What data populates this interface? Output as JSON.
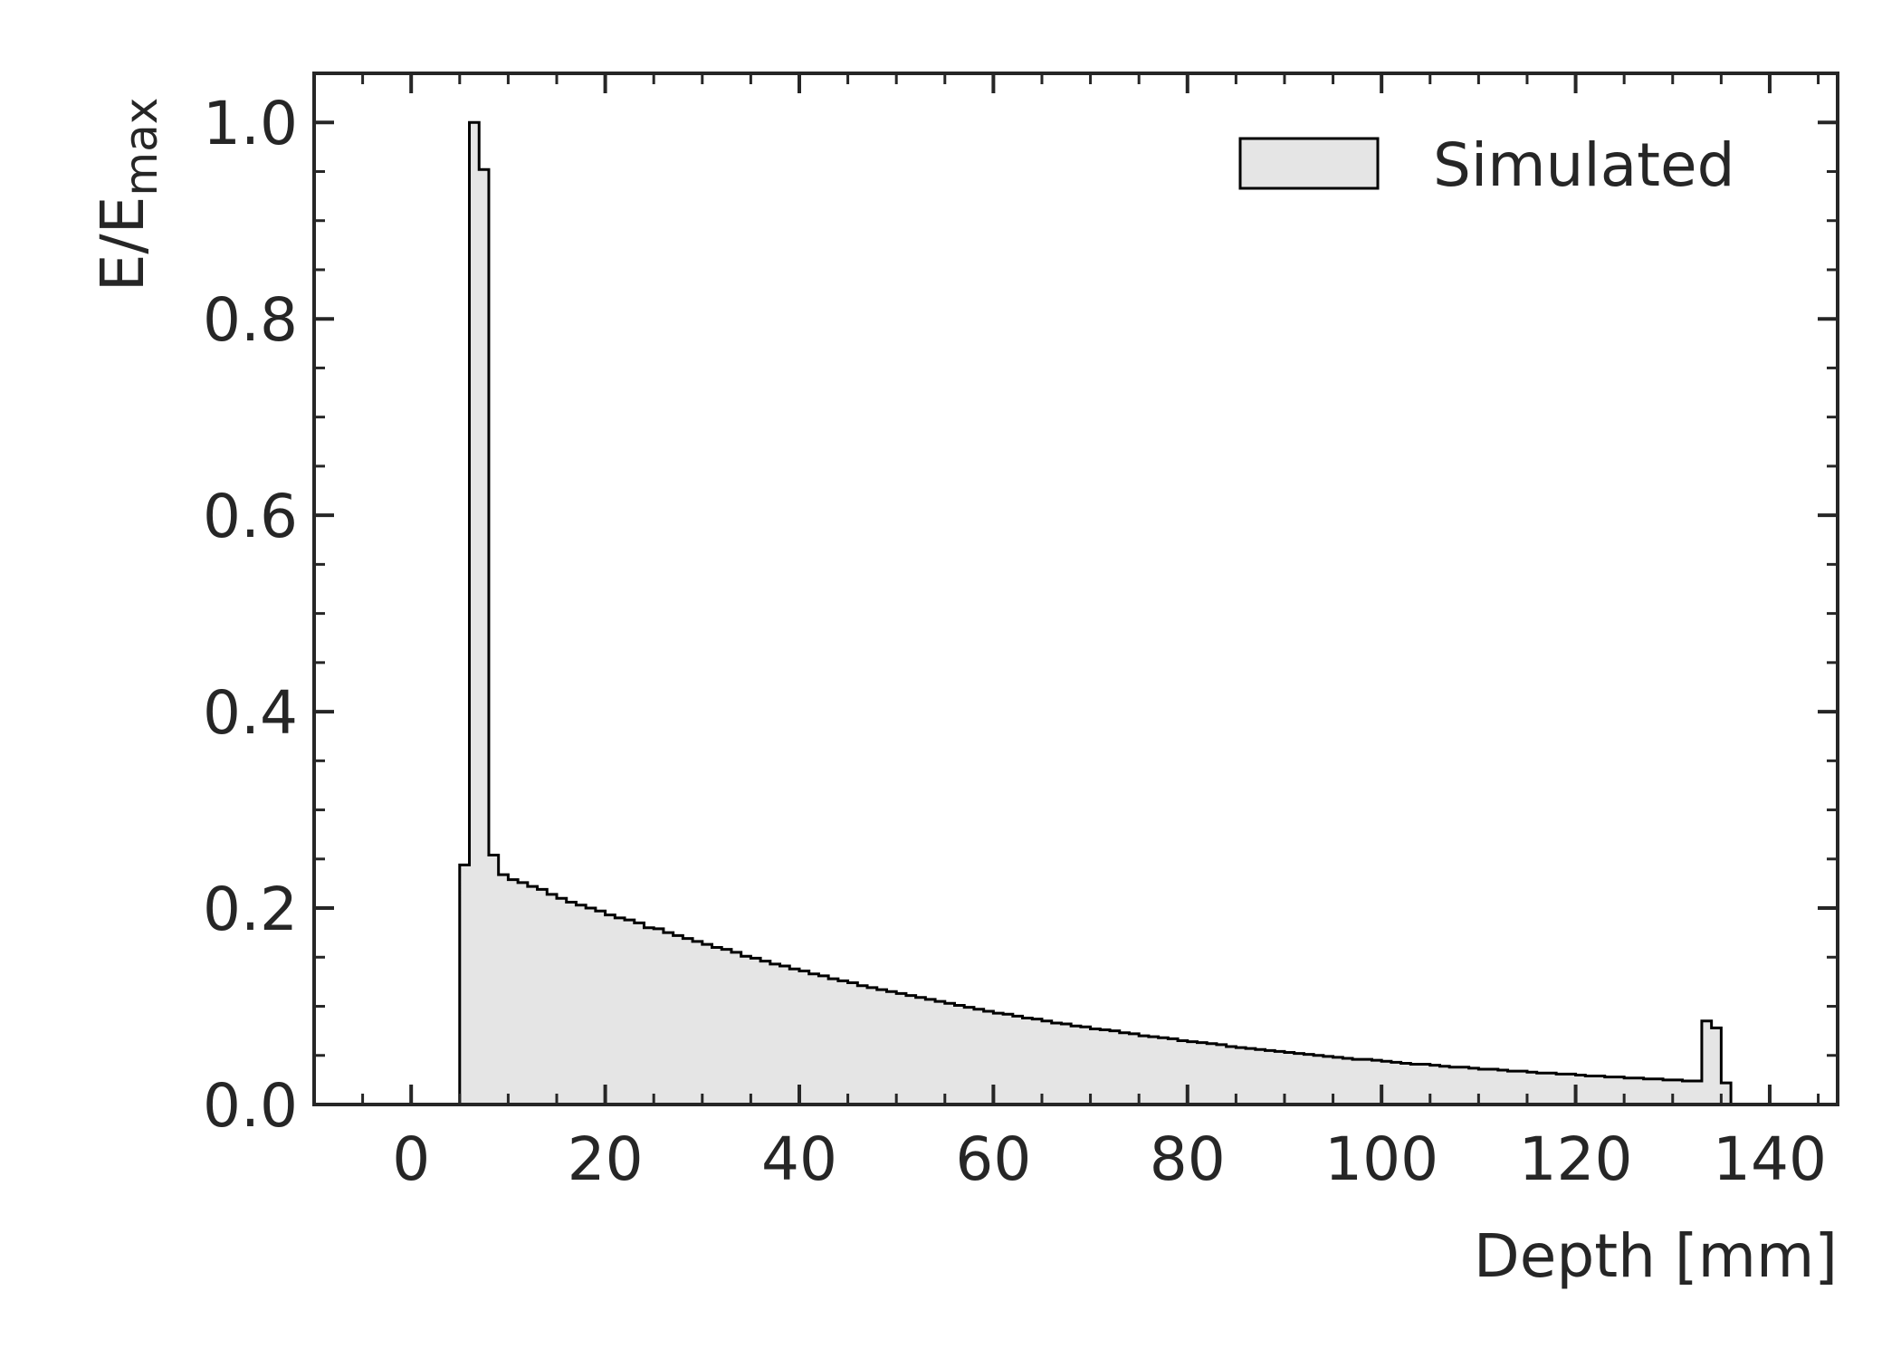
{
  "chart_data": {
    "type": "histogram",
    "xlabel": "Depth [mm]",
    "ylabel_main": "E/E",
    "ylabel_sub": "max",
    "xlim": [
      -10,
      147
    ],
    "ylim": [
      0,
      1.05
    ],
    "x_major_ticks": [
      0,
      20,
      40,
      60,
      80,
      100,
      120,
      140
    ],
    "x_tick_labels": [
      "0",
      "20",
      "40",
      "60",
      "80",
      "100",
      "120",
      "140"
    ],
    "x_minor_step": 5,
    "y_major_ticks": [
      0,
      0.2,
      0.4,
      0.6,
      0.8,
      1.0
    ],
    "y_tick_labels": [
      "0.0",
      "0.2",
      "0.4",
      "0.6",
      "0.8",
      "1.0"
    ],
    "y_minor_step": 0.05,
    "grid": false,
    "legend_position": "top-right",
    "colors": {
      "fill": "#e5e5e5",
      "edge": "#000000",
      "axis": "#262626"
    },
    "series": [
      {
        "name": "Simulated",
        "bin_width": 1,
        "x_start": 5,
        "values": [
          0.244,
          1.0,
          0.952,
          0.254,
          0.234,
          0.229,
          0.226,
          0.222,
          0.219,
          0.214,
          0.21,
          0.206,
          0.203,
          0.2,
          0.197,
          0.193,
          0.19,
          0.188,
          0.185,
          0.18,
          0.179,
          0.175,
          0.172,
          0.169,
          0.166,
          0.163,
          0.16,
          0.158,
          0.155,
          0.151,
          0.149,
          0.146,
          0.143,
          0.141,
          0.138,
          0.136,
          0.133,
          0.131,
          0.128,
          0.126,
          0.124,
          0.121,
          0.119,
          0.117,
          0.115,
          0.113,
          0.111,
          0.109,
          0.107,
          0.105,
          0.103,
          0.101,
          0.099,
          0.097,
          0.095,
          0.093,
          0.092,
          0.09,
          0.088,
          0.087,
          0.085,
          0.083,
          0.082,
          0.08,
          0.079,
          0.077,
          0.076,
          0.075,
          0.073,
          0.072,
          0.07,
          0.069,
          0.068,
          0.067,
          0.065,
          0.064,
          0.063,
          0.062,
          0.061,
          0.059,
          0.058,
          0.057,
          0.056,
          0.055,
          0.054,
          0.053,
          0.052,
          0.051,
          0.05,
          0.049,
          0.048,
          0.047,
          0.046,
          0.046,
          0.045,
          0.044,
          0.043,
          0.042,
          0.041,
          0.041,
          0.04,
          0.039,
          0.038,
          0.038,
          0.037,
          0.036,
          0.036,
          0.035,
          0.034,
          0.034,
          0.033,
          0.032,
          0.032,
          0.031,
          0.031,
          0.03,
          0.029,
          0.029,
          0.028,
          0.028,
          0.027,
          0.027,
          0.026,
          0.026,
          0.025,
          0.025,
          0.024,
          0.024,
          0.085,
          0.078,
          0.022
        ]
      }
    ]
  }
}
